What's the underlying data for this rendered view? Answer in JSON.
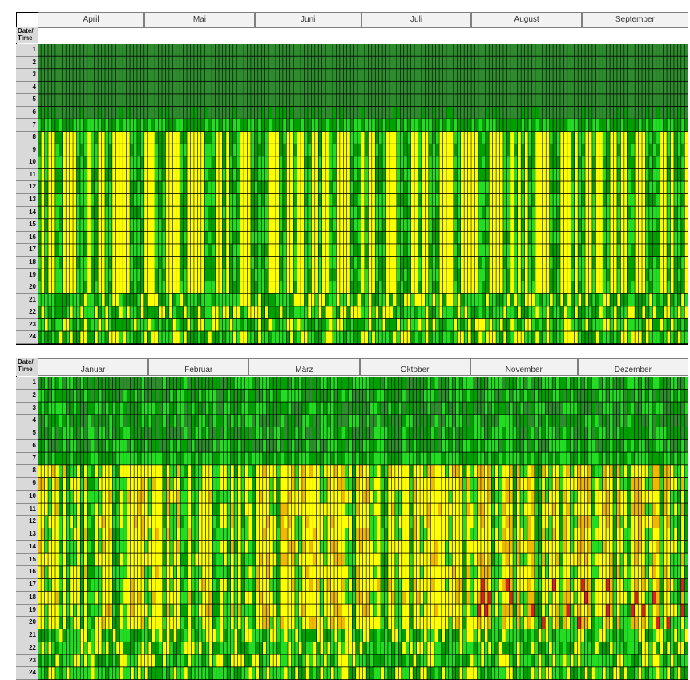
{
  "chart_data": [
    {
      "type": "heatmap",
      "corner_label_1": "Date/",
      "corner_label_2": "Time",
      "months": [
        "April",
        "Mai",
        "Juni",
        "Juli",
        "August",
        "September"
      ],
      "hours": [
        "1",
        "2",
        "3",
        "4",
        "5",
        "6",
        "7",
        "8",
        "9",
        "10",
        "11",
        "12",
        "13",
        "14",
        "15",
        "16",
        "17",
        "18",
        "19",
        "20",
        "21",
        "22",
        "23",
        "24"
      ],
      "days_per_month": [
        30,
        31,
        30,
        31,
        31,
        30
      ],
      "levels": {
        "0": "#2e8b2e",
        "1": "#00a000",
        "2": "#22dd22",
        "3": "#ffff00",
        "4": "#f0b800",
        "5": "#e02020"
      },
      "night_rows": [
        1,
        2,
        3,
        4,
        5,
        6
      ],
      "day_profile": "yellow blocks dominate hours 8-20 on most days; hours 1-6 dark green; hour 7 and 21-24 mixed green"
    },
    {
      "type": "heatmap",
      "corner_label_1": "Date/",
      "corner_label_2": "Time",
      "months": [
        "Januar",
        "Februar",
        "März",
        "Oktober",
        "November",
        "Dezember"
      ],
      "hours": [
        "1",
        "2",
        "3",
        "4",
        "5",
        "6",
        "7",
        "8",
        "9",
        "10",
        "11",
        "12",
        "13",
        "14",
        "15",
        "16",
        "17",
        "18",
        "19",
        "20",
        "21",
        "22",
        "23",
        "24"
      ],
      "days_per_month": [
        31,
        28,
        31,
        31,
        30,
        31
      ],
      "levels": {
        "0": "#2e8b2e",
        "1": "#00a000",
        "2": "#22dd22",
        "3": "#ffff00",
        "4": "#f0b800",
        "5": "#e02020"
      },
      "day_profile": "yellow/orange blocks hours 8-20; red peaks in evening hours (18-20) late in the year"
    }
  ]
}
